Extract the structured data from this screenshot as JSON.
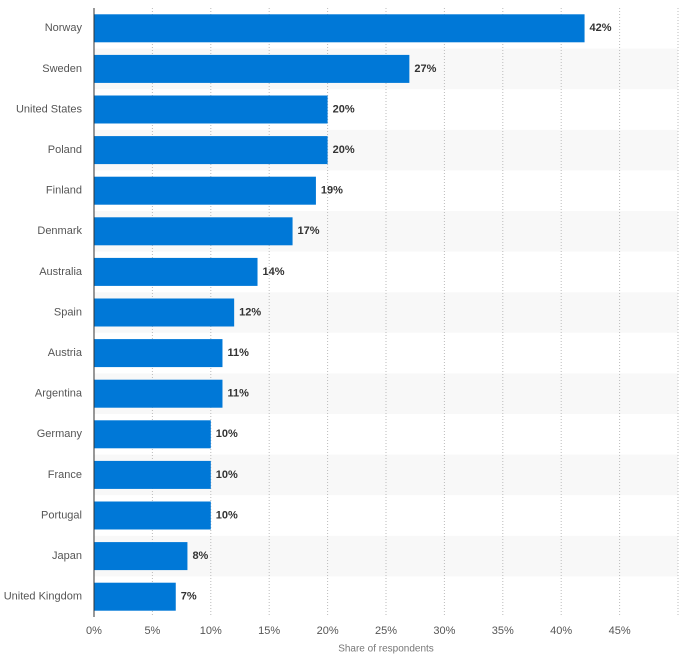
{
  "chart_data": {
    "type": "bar",
    "orientation": "horizontal",
    "categories": [
      "Norway",
      "Sweden",
      "United States",
      "Poland",
      "Finland",
      "Denmark",
      "Australia",
      "Spain",
      "Austria",
      "Argentina",
      "Germany",
      "France",
      "Portugal",
      "Japan",
      "United Kingdom"
    ],
    "values": [
      42,
      27,
      20,
      20,
      19,
      17,
      14,
      12,
      11,
      11,
      10,
      10,
      10,
      8,
      7
    ],
    "value_labels": [
      "42%",
      "27%",
      "20%",
      "20%",
      "19%",
      "17%",
      "14%",
      "12%",
      "11%",
      "11%",
      "10%",
      "10%",
      "10%",
      "8%",
      "7%"
    ],
    "color": "#0078d7",
    "x_label": "Share of respondents",
    "xlim": [
      0,
      50
    ],
    "xticks": [
      {
        "value": 0,
        "label": "0%"
      },
      {
        "value": 5,
        "label": "5%"
      },
      {
        "value": 10,
        "label": "10%"
      },
      {
        "value": 15,
        "label": "15%"
      },
      {
        "value": 20,
        "label": "20%"
      },
      {
        "value": 25,
        "label": "25%"
      },
      {
        "value": 30,
        "label": "30%"
      },
      {
        "value": 35,
        "label": "35%"
      },
      {
        "value": 40,
        "label": "40%"
      },
      {
        "value": 45,
        "label": "45%"
      }
    ],
    "grid": true
  }
}
